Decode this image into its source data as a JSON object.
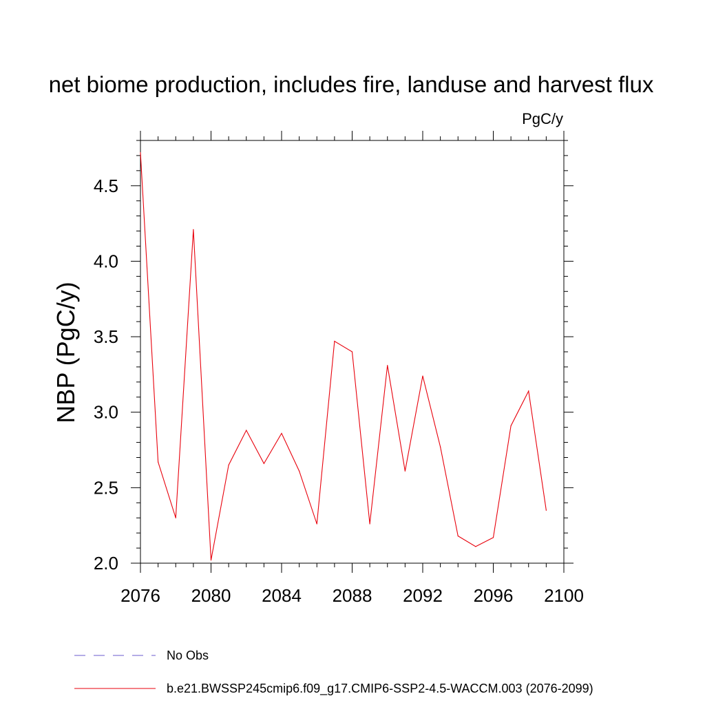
{
  "chart_data": {
    "type": "line",
    "title": "net biome production, includes fire, landuse and harvest flux",
    "units_label": "PgC/y",
    "ylabel": "NBP  (PgC/y)",
    "xlabel": "",
    "xlim": [
      2076,
      2100
    ],
    "ylim": [
      2.0,
      4.8
    ],
    "x_ticks": [
      2076,
      2080,
      2084,
      2088,
      2092,
      2096,
      2100
    ],
    "x_tick_labels": [
      "2076",
      "2080",
      "2084",
      "2088",
      "2092",
      "2096",
      "2100"
    ],
    "y_ticks": [
      2.0,
      2.5,
      3.0,
      3.5,
      4.0,
      4.5
    ],
    "y_tick_labels": [
      "2.0",
      "2.5",
      "3.0",
      "3.5",
      "4.0",
      "4.5"
    ],
    "series": [
      {
        "name": "b.e21.BWSSP245cmip6.f09_g17.CMIP6-SSP2-4.5-WACCM.003 (2076-2099)",
        "color": "#e8000b",
        "x": [
          2076,
          2077,
          2078,
          2079,
          2080,
          2081,
          2082,
          2083,
          2084,
          2085,
          2086,
          2087,
          2088,
          2089,
          2090,
          2091,
          2092,
          2093,
          2094,
          2095,
          2096,
          2097,
          2098,
          2099
        ],
        "values": [
          4.72,
          2.67,
          2.3,
          4.21,
          2.02,
          2.65,
          2.88,
          2.66,
          2.86,
          2.61,
          2.26,
          3.47,
          3.4,
          2.26,
          3.31,
          2.61,
          3.24,
          2.77,
          2.18,
          2.11,
          2.17,
          2.91,
          3.14,
          2.35
        ]
      }
    ],
    "legend": [
      {
        "label": "No Obs",
        "color": "#6a5acd",
        "style": "dashed"
      },
      {
        "label": "b.e21.BWSSP245cmip6.f09_g17.CMIP6-SSP2-4.5-WACCM.003 (2076-2099)",
        "color": "#e8000b",
        "style": "solid"
      }
    ]
  }
}
